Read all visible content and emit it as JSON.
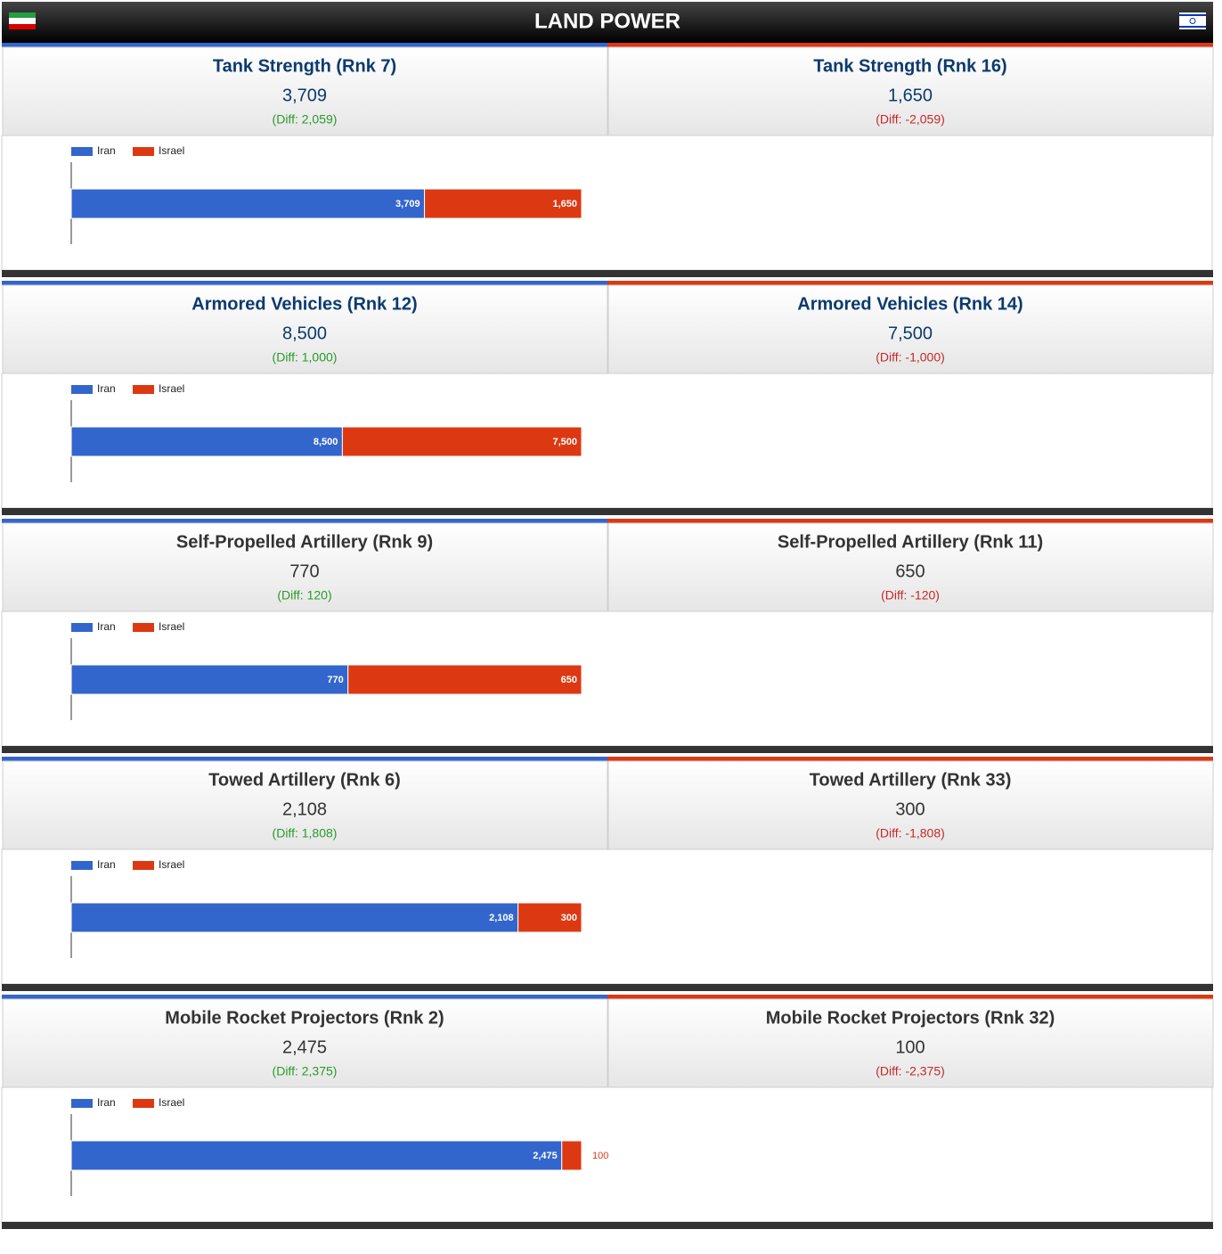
{
  "header": {
    "title": "LAND POWER"
  },
  "sections": [
    {
      "title_color": "#0b3a6e",
      "left": {
        "title": "Tank Strength (Rnk 7)",
        "value": "3,709",
        "diff": "(Diff: 2,059)"
      },
      "right": {
        "title": "Tank Strength (Rnk 16)",
        "value": "1,650",
        "diff": "(Diff: -2,059)"
      }
    },
    {
      "title_color": "#0b3a6e",
      "left": {
        "title": "Armored Vehicles (Rnk 12)",
        "value": "8,500",
        "diff": "(Diff: 1,000)"
      },
      "right": {
        "title": "Armored Vehicles (Rnk 14)",
        "value": "7,500",
        "diff": "(Diff: -1,000)"
      }
    },
    {
      "title_color": "#333333",
      "left": {
        "title": "Self-Propelled Artillery (Rnk 9)",
        "value": "770",
        "diff": "(Diff: 120)"
      },
      "right": {
        "title": "Self-Propelled Artillery (Rnk 11)",
        "value": "650",
        "diff": "(Diff: -120)"
      }
    },
    {
      "title_color": "#333333",
      "left": {
        "title": "Towed Artillery (Rnk 6)",
        "value": "2,108",
        "diff": "(Diff: 1,808)"
      },
      "right": {
        "title": "Towed Artillery (Rnk 33)",
        "value": "300",
        "diff": "(Diff: -1,808)"
      }
    },
    {
      "title_color": "#333333",
      "left": {
        "title": "Mobile Rocket Projectors (Rnk 2)",
        "value": "2,475",
        "diff": "(Diff: 2,375)"
      },
      "right": {
        "title": "Mobile Rocket Projectors (Rnk 32)",
        "value": "100",
        "diff": "(Diff: -2,375)"
      }
    }
  ],
  "chart_data": [
    {
      "type": "bar",
      "orientation": "horizontal",
      "stacked": "percent",
      "series": [
        {
          "name": "Iran",
          "color": "#3366cc",
          "values": [
            3709
          ],
          "value_labels": [
            "3,709"
          ]
        },
        {
          "name": "Israel",
          "color": "#dc3912",
          "values": [
            1650
          ],
          "value_labels": [
            "1,650"
          ]
        }
      ]
    },
    {
      "type": "bar",
      "orientation": "horizontal",
      "stacked": "percent",
      "series": [
        {
          "name": "Iran",
          "color": "#3366cc",
          "values": [
            8500
          ],
          "value_labels": [
            "8,500"
          ]
        },
        {
          "name": "Israel",
          "color": "#dc3912",
          "values": [
            7500
          ],
          "value_labels": [
            "7,500"
          ]
        }
      ]
    },
    {
      "type": "bar",
      "orientation": "horizontal",
      "stacked": "percent",
      "series": [
        {
          "name": "Iran",
          "color": "#3366cc",
          "values": [
            770
          ]
        },
        {
          "name": "Israel",
          "color": "#dc3912",
          "values": [
            650
          ]
        }
      ]
    },
    {
      "type": "bar",
      "orientation": "horizontal",
      "stacked": "percent",
      "series": [
        {
          "name": "Iran",
          "color": "#3366cc",
          "values": [
            2108
          ],
          "value_labels": [
            "2,108"
          ]
        },
        {
          "name": "Israel",
          "color": "#dc3912",
          "values": [
            300
          ]
        }
      ]
    },
    {
      "type": "bar",
      "orientation": "horizontal",
      "stacked": "percent",
      "series": [
        {
          "name": "Iran",
          "color": "#3366cc",
          "values": [
            2475
          ],
          "value_labels": [
            "2,475"
          ]
        },
        {
          "name": "Israel",
          "color": "#dc3912",
          "values": [
            100
          ]
        }
      ]
    }
  ]
}
